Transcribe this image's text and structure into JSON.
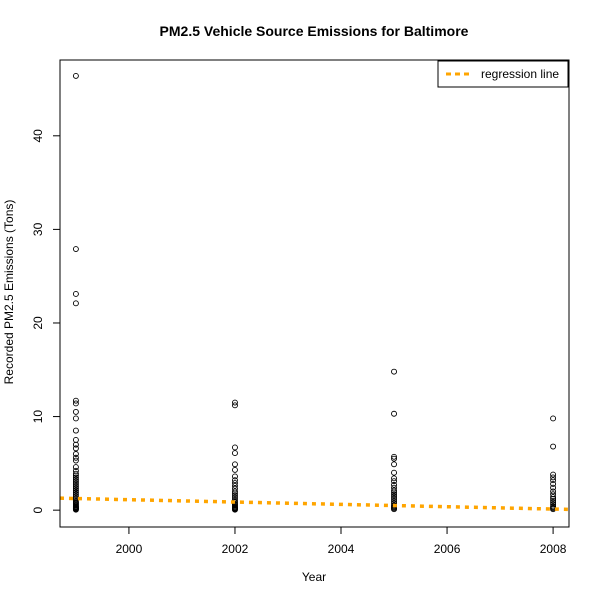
{
  "chart_data": {
    "type": "scatter",
    "title": "PM2.5 Vehicle Source Emissions for Baltimore",
    "xlabel": "Year",
    "ylabel": "Recorded PM2.5 Emissions (Tons)",
    "xlim": [
      1998.7,
      2008.3
    ],
    "ylim": [
      -1.8,
      48.1
    ],
    "x_ticks": [
      2000,
      2002,
      2004,
      2006,
      2008
    ],
    "y_ticks": [
      0,
      10,
      20,
      30,
      40
    ],
    "grid": false,
    "legend": {
      "position": "top-right",
      "entries": [
        "regression line"
      ]
    },
    "point_style": {
      "shape": "open-circle",
      "color": "#000000"
    },
    "series": [
      {
        "x": [
          1999,
          1999,
          1999,
          1999,
          1999,
          1999,
          1999,
          1999,
          1999,
          1999,
          1999,
          1999,
          1999,
          1999,
          1999,
          1999,
          1999,
          1999,
          1999,
          1999,
          1999,
          1999,
          1999,
          1999,
          1999,
          1999,
          1999,
          1999,
          1999,
          1999,
          1999,
          1999,
          1999,
          1999,
          1999,
          1999,
          1999,
          1999,
          1999,
          1999,
          1999,
          1999,
          1999,
          1999,
          1999,
          2002,
          2002,
          2002,
          2002,
          2002,
          2002,
          2002,
          2002,
          2002,
          2002,
          2002,
          2002,
          2002,
          2002,
          2002,
          2002,
          2002,
          2002,
          2002,
          2002,
          2002,
          2002,
          2002,
          2002,
          2002,
          2002,
          2002,
          2002,
          2005,
          2005,
          2005,
          2005,
          2005,
          2005,
          2005,
          2005,
          2005,
          2005,
          2005,
          2005,
          2005,
          2005,
          2005,
          2005,
          2005,
          2005,
          2005,
          2005,
          2005,
          2005,
          2005,
          2008,
          2008,
          2008,
          2008,
          2008,
          2008,
          2008,
          2008,
          2008,
          2008,
          2008,
          2008,
          2008,
          2008,
          2008,
          2008,
          2008,
          2008
        ],
        "y": [
          46.4,
          27.9,
          23.1,
          22.1,
          11.7,
          11.4,
          10.5,
          9.8,
          8.5,
          7.5,
          7.0,
          6.6,
          6.0,
          5.6,
          5.3,
          4.6,
          4.2,
          3.9,
          3.7,
          3.5,
          3.3,
          3.1,
          2.9,
          2.7,
          2.5,
          2.3,
          2.1,
          1.9,
          1.7,
          1.5,
          1.3,
          1.1,
          0.9,
          0.8,
          0.7,
          0.6,
          0.5,
          0.4,
          0.35,
          0.3,
          0.25,
          0.2,
          0.15,
          0.1,
          0.05,
          11.5,
          11.2,
          6.7,
          6.1,
          4.9,
          4.3,
          3.6,
          3.2,
          2.9,
          2.6,
          2.3,
          2.0,
          1.8,
          1.6,
          1.4,
          1.2,
          1.0,
          0.85,
          0.7,
          0.6,
          0.5,
          0.4,
          0.3,
          0.25,
          0.2,
          0.15,
          0.1,
          0.05,
          14.8,
          10.3,
          5.7,
          5.5,
          4.9,
          4.0,
          3.4,
          3.1,
          2.7,
          2.4,
          2.1,
          1.9,
          1.7,
          1.5,
          1.3,
          1.1,
          0.9,
          0.7,
          0.5,
          0.4,
          0.3,
          0.2,
          0.1,
          9.8,
          6.8,
          3.8,
          3.5,
          3.2,
          2.8,
          2.4,
          2.0,
          1.7,
          1.4,
          1.2,
          1.0,
          0.8,
          0.6,
          0.4,
          0.3,
          0.2,
          0.1
        ]
      },
      {
        "name": "regression line",
        "type": "line",
        "style": "dashed",
        "color": "#FFA500",
        "x": [
          1998.7,
          2008.3
        ],
        "y": [
          1.28,
          0.08
        ]
      }
    ]
  }
}
